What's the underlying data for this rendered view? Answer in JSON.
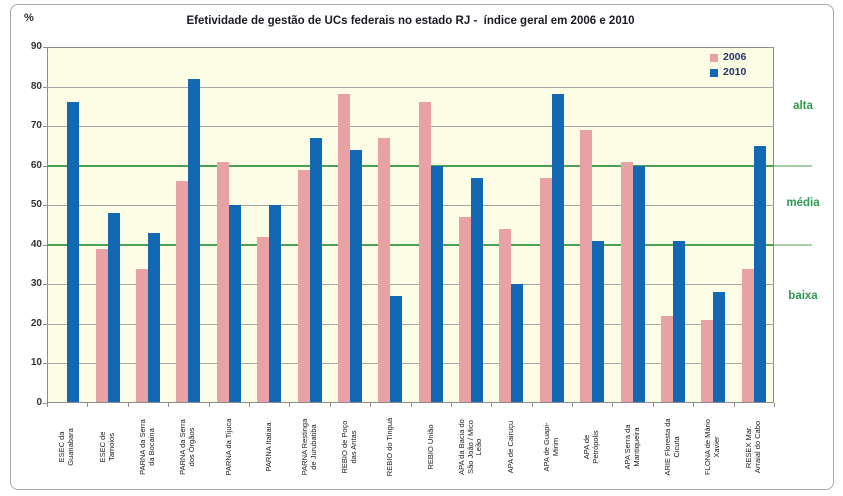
{
  "chart": {
    "title": "Efetividade de gestão de UCs federais no estado RJ -  índice geral em 2006 e 2010",
    "y_unit": "%"
  },
  "chart_data": {
    "type": "bar",
    "title": "Efetividade de gestão de UCs federais no estado RJ -  índice geral em 2006 e 2010",
    "xlabel": "",
    "ylabel": "%",
    "ylim": [
      0,
      90
    ],
    "yticks": [
      0,
      10,
      20,
      30,
      40,
      50,
      60,
      70,
      80,
      90
    ],
    "grid": true,
    "legend_position": "top-right",
    "plot_background": "#fdfde6",
    "gridline_color": "#a6a6a6",
    "categories": [
      "ESEC da\nGuanabara",
      "ESEC de\nTamoios",
      "PARNA da Serra\nda Bocaina",
      "PARNA da Serra\ndos Órgãos",
      "PARNA da Tijuca",
      "PARNA Itatiaia",
      "PARNA Restinga\nde Jurubatiba",
      "REBIO de Poço\ndas Antas",
      "REBIO do Tinguá",
      "REBIO União",
      "APA da Bacia do\nSão João / Mico\nLeão",
      "APA de Cairuçu",
      "APA de Guapi-\nMirim",
      "APA de\nPetrópolis",
      "APA Serra da\nMantiqueira",
      "ARIE Floresta da\nCicuta",
      "FLONA de Mário\nXavier",
      "RESEX Mar.\nArraial do Cabo"
    ],
    "series": [
      {
        "name": "2006",
        "color": "#e8a1a4",
        "values": [
          null,
          39,
          34,
          56,
          61,
          42,
          59,
          78,
          67,
          76,
          47,
          44,
          57,
          69,
          61,
          22,
          21,
          34
        ]
      },
      {
        "name": "2010",
        "color": "#1268b3",
        "values": [
          76,
          48,
          43,
          82,
          50,
          50,
          67,
          64,
          27,
          60,
          57,
          30,
          78,
          41,
          60,
          41,
          28,
          65
        ]
      }
    ],
    "threshold_lines": [
      {
        "value": 60,
        "color": "#4aa053",
        "extension_color": "#a9cfa9"
      },
      {
        "value": 40,
        "color": "#4aa053",
        "extension_color": "#a9cfa9"
      }
    ],
    "zones": [
      {
        "label": "alta",
        "center_value": 75
      },
      {
        "label": "média",
        "center_value": 50.5
      },
      {
        "label": "baixa",
        "center_value": 27
      }
    ]
  }
}
